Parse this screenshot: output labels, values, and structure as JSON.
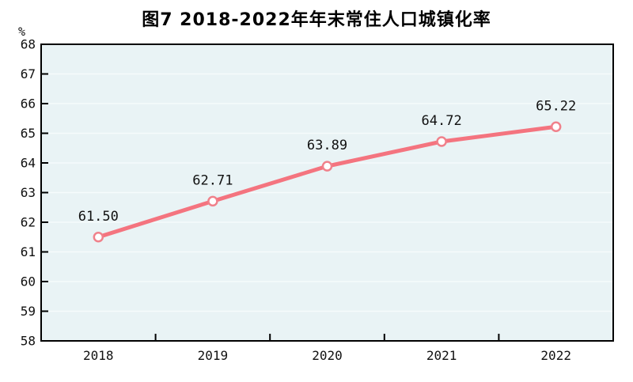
{
  "chart_data": {
    "type": "line",
    "title": "图7  2018-2022年年末常住人口城镇化率",
    "unit_label": "%",
    "categories": [
      "2018",
      "2019",
      "2020",
      "2021",
      "2022"
    ],
    "series": [
      {
        "values": [
          61.5,
          62.71,
          63.89,
          64.72,
          65.22
        ],
        "value_labels": [
          "61.50",
          "62.71",
          "63.89",
          "64.72",
          "65.22"
        ]
      }
    ],
    "ylim": [
      58,
      68
    ],
    "ytick_step": 1,
    "yticks": [
      58,
      59,
      60,
      61,
      62,
      63,
      64,
      65,
      66,
      67,
      68
    ],
    "grid": "horizontal",
    "legend": "none",
    "colors": {
      "line": "#f4747f",
      "marker_fill": "#ffffff",
      "marker_stroke": "#f0818b",
      "plot_bg": "#e9f3f5",
      "grid": "#f6fbfc",
      "axis": "#000000",
      "text": "#111111"
    }
  }
}
